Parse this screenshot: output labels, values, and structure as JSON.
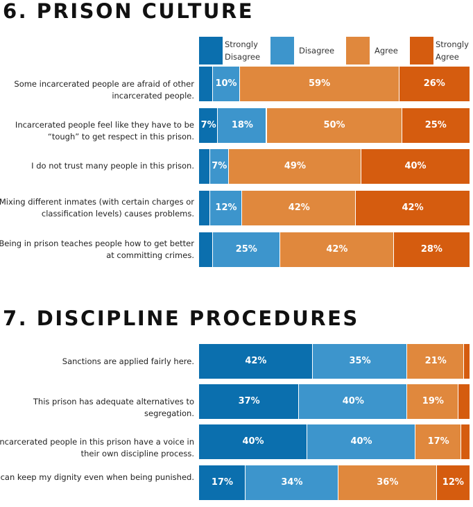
{
  "legend": [
    {
      "label": "Strongly\nDisagree",
      "color": "#0b6fae"
    },
    {
      "label": "Disagree",
      "color": "#3d95cc"
    },
    {
      "label": "Agree",
      "color": "#e0883d"
    },
    {
      "label": "Strongly\nAgree",
      "color": "#d55c0f"
    }
  ],
  "chart_data": [
    {
      "type": "bar",
      "stacked": true,
      "orientation": "horizontal",
      "title": "6. PRISON CULTURE",
      "series_names": [
        "Strongly Disagree",
        "Disagree",
        "Agree",
        "Strongly Agree"
      ],
      "rows": [
        {
          "label": "Some incarcerated people are afraid of other incarcerated people.",
          "values": [
            5,
            10,
            59,
            26
          ],
          "labels": [
            "",
            "10%",
            "59%",
            "26%"
          ]
        },
        {
          "label": "Incarcerated people feel like they have to be “tough” to get respect in this prison.",
          "values": [
            7,
            18,
            50,
            25
          ],
          "labels": [
            "7%",
            "18%",
            "50%",
            "25%"
          ]
        },
        {
          "label": "I do not trust many people in this prison.",
          "values": [
            4,
            7,
            49,
            40
          ],
          "labels": [
            "",
            "7%",
            "49%",
            "40%"
          ]
        },
        {
          "label": "Mixing different inmates (with certain charges or classification levels) causes problems.",
          "values": [
            4,
            12,
            42,
            42
          ],
          "labels": [
            "",
            "12%",
            "42%",
            "42%"
          ]
        },
        {
          "label": "Being in prison teaches people how to get better at committing crimes.",
          "values": [
            5,
            25,
            42,
            28
          ],
          "labels": [
            "",
            "25%",
            "42%",
            "28%"
          ]
        }
      ]
    },
    {
      "type": "bar",
      "stacked": true,
      "orientation": "horizontal",
      "title": "7. DISCIPLINE PROCEDURES",
      "series_names": [
        "Strongly Disagree",
        "Disagree",
        "Agree",
        "Strongly Agree"
      ],
      "rows": [
        {
          "label": "Sanctions are applied fairly here.",
          "values": [
            42,
            35,
            21,
            2
          ],
          "labels": [
            "42%",
            "35%",
            "21%",
            ""
          ]
        },
        {
          "label": "This prison has adequate alternatives to segregation.",
          "values": [
            37,
            40,
            19,
            4
          ],
          "labels": [
            "37%",
            "40%",
            "19%",
            ""
          ]
        },
        {
          "label": "Incarcerated people in this prison have a voice in their own discipline process.",
          "values": [
            40,
            40,
            17,
            3
          ],
          "labels": [
            "40%",
            "40%",
            "17%",
            ""
          ]
        },
        {
          "label": "I can keep my dignity even when being punished.",
          "values": [
            17,
            34,
            36,
            12
          ],
          "labels": [
            "17%",
            "34%",
            "36%",
            "12%"
          ]
        }
      ]
    }
  ]
}
